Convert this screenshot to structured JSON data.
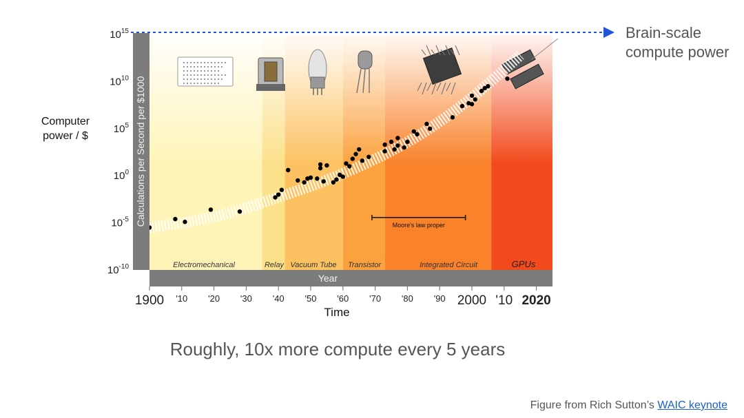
{
  "callout": {
    "line1": "Brain-scale",
    "line2": "compute power"
  },
  "subtitle": "Roughly, 10x more compute every 5 years",
  "credit": {
    "prefix": "Figure from Rich Sutton’s ",
    "link": "WAIC keynote"
  },
  "outer_ylabel": {
    "line1": "Computer",
    "line2": "power / $"
  },
  "outer_xlabel": "Time",
  "colors": {
    "gray_axis": "#7c7c7c",
    "dashed_line": "#2255dd",
    "points": "#000000",
    "bracket": "#111111"
  },
  "chart_data": {
    "type": "scatter",
    "ylabel": "Calculations per Second per $1000",
    "xlabel": "Year",
    "yscale": "log",
    "ylim": [
      -10,
      15
    ],
    "xlim": [
      1900,
      2025
    ],
    "y_ticks": [
      {
        "exp": -10,
        "text": "10",
        "sup": "-10"
      },
      {
        "exp": -5,
        "text": "10",
        "sup": "-5"
      },
      {
        "exp": 0,
        "text": "10",
        "sup": "0"
      },
      {
        "exp": 5,
        "text": "10",
        "sup": "5"
      },
      {
        "exp": 10,
        "text": "10",
        "sup": "10"
      },
      {
        "exp": 15,
        "text": "10",
        "sup": "15"
      }
    ],
    "x_ticks": [
      {
        "x": 1900,
        "text": "1900",
        "big": true
      },
      {
        "x": 1910,
        "text": "'10"
      },
      {
        "x": 1920,
        "text": "'20"
      },
      {
        "x": 1930,
        "text": "'30"
      },
      {
        "x": 1940,
        "text": "'40"
      },
      {
        "x": 1950,
        "text": "'50"
      },
      {
        "x": 1960,
        "text": "'60"
      },
      {
        "x": 1970,
        "text": "'70"
      },
      {
        "x": 1980,
        "text": "'80"
      },
      {
        "x": 1990,
        "text": "'90"
      },
      {
        "x": 2000,
        "text": "2000",
        "big": true
      },
      {
        "x": 2010,
        "text": "'10",
        "big": true
      },
      {
        "x": 2020,
        "text": "2020",
        "big": true,
        "bold": true
      }
    ],
    "eras": [
      {
        "name": "Electromechanical",
        "start": 1900,
        "end": 1935,
        "color": "#fff4b8"
      },
      {
        "name": "Relay",
        "start": 1935,
        "end": 1942,
        "color": "#fce08a"
      },
      {
        "name": "Vacuum Tube",
        "start": 1942,
        "end": 1960,
        "color": "#fcc261"
      },
      {
        "name": "Transistor",
        "start": 1960,
        "end": 1973,
        "color": "#fba23e"
      },
      {
        "name": "Integrated Circuit",
        "start": 1973,
        "end": 2006,
        "color": "#f9822a"
      },
      {
        "name": "GPUs",
        "start": 2006,
        "end": 2025,
        "color": "#f24a1c"
      }
    ],
    "annotation": {
      "text": "Moore's law proper",
      "x_start": 1969,
      "x_end": 1998,
      "y": -4
    },
    "brain_scale_y": 15,
    "trend": {
      "x": [
        1900,
        1920,
        1940,
        1955,
        1970,
        1985,
        2000,
        2015
      ],
      "y": [
        -5.5,
        -4.5,
        -2.3,
        -0.5,
        1.7,
        4.5,
        8.2,
        12.8
      ]
    },
    "points": [
      {
        "x": 1900,
        "y": -5.5
      },
      {
        "x": 1908,
        "y": -4.6
      },
      {
        "x": 1911,
        "y": -4.9
      },
      {
        "x": 1919,
        "y": -3.6
      },
      {
        "x": 1928,
        "y": -3.8
      },
      {
        "x": 1939,
        "y": -2.3
      },
      {
        "x": 1940,
        "y": -2.0
      },
      {
        "x": 1941,
        "y": -1.5
      },
      {
        "x": 1943,
        "y": 0.6
      },
      {
        "x": 1946,
        "y": -0.5
      },
      {
        "x": 1948,
        "y": -0.7
      },
      {
        "x": 1949,
        "y": -0.3
      },
      {
        "x": 1950,
        "y": -0.2
      },
      {
        "x": 1952,
        "y": -0.3
      },
      {
        "x": 1953,
        "y": 0.8
      },
      {
        "x": 1953,
        "y": 1.2
      },
      {
        "x": 1954,
        "y": -0.6
      },
      {
        "x": 1955,
        "y": 1.1
      },
      {
        "x": 1957,
        "y": -0.7
      },
      {
        "x": 1958,
        "y": -0.4
      },
      {
        "x": 1959,
        "y": 0.1
      },
      {
        "x": 1960,
        "y": -0.1
      },
      {
        "x": 1961,
        "y": 1.3
      },
      {
        "x": 1962,
        "y": 1.0
      },
      {
        "x": 1963,
        "y": 1.8
      },
      {
        "x": 1964,
        "y": 2.3
      },
      {
        "x": 1965,
        "y": 2.8
      },
      {
        "x": 1966,
        "y": 1.6
      },
      {
        "x": 1968,
        "y": 2.0
      },
      {
        "x": 1973,
        "y": 2.6
      },
      {
        "x": 1973,
        "y": 3.3
      },
      {
        "x": 1975,
        "y": 3.6
      },
      {
        "x": 1976,
        "y": 2.8
      },
      {
        "x": 1977,
        "y": 3.2
      },
      {
        "x": 1977,
        "y": 4.0
      },
      {
        "x": 1979,
        "y": 3.0
      },
      {
        "x": 1980,
        "y": 3.6
      },
      {
        "x": 1982,
        "y": 4.7
      },
      {
        "x": 1983,
        "y": 4.4
      },
      {
        "x": 1986,
        "y": 5.5
      },
      {
        "x": 1987,
        "y": 5.0
      },
      {
        "x": 1994,
        "y": 6.2
      },
      {
        "x": 1997,
        "y": 7.4
      },
      {
        "x": 1999,
        "y": 7.7
      },
      {
        "x": 2000,
        "y": 8.5
      },
      {
        "x": 2000,
        "y": 7.6
      },
      {
        "x": 2001,
        "y": 8.1
      },
      {
        "x": 2003,
        "y": 9.0
      },
      {
        "x": 2004,
        "y": 9.3
      },
      {
        "x": 2005,
        "y": 9.5
      },
      {
        "x": 2011,
        "y": 10.3
      }
    ]
  }
}
